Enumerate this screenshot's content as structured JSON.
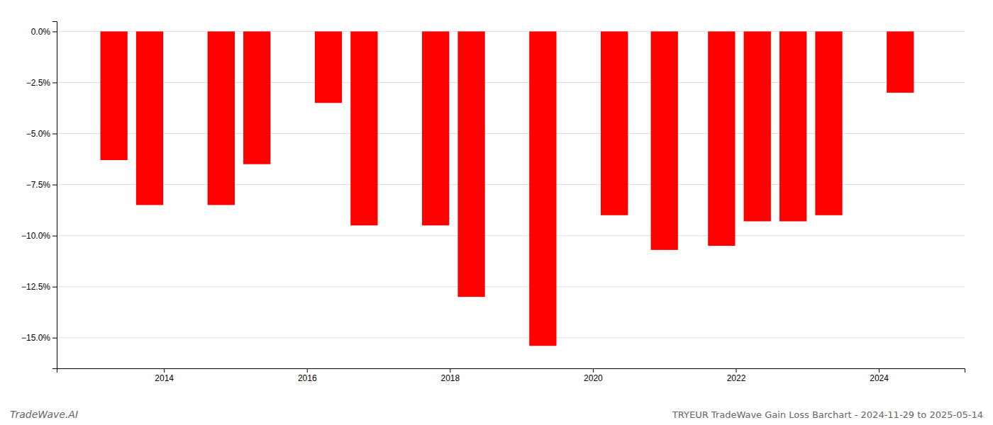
{
  "chart_data": {
    "type": "bar",
    "title": "TRYEUR TradeWave Gain Loss Barchart - 2024-11-29 to 2025-05-14",
    "annotations": [
      {
        "text": "TradeWave.AI"
      }
    ],
    "x": [
      2013.3,
      2013.8,
      2014.8,
      2015.3,
      2016.3,
      2016.8,
      2017.8,
      2018.3,
      2019.3,
      2020.3,
      2021.0,
      2021.8,
      2022.3,
      2022.8,
      2023.3,
      2024.3
    ],
    "values": [
      -6.3,
      -8.5,
      -8.5,
      -6.5,
      -3.5,
      -9.5,
      -9.5,
      -13.0,
      -15.4,
      -9.0,
      -10.7,
      -10.5,
      -9.3,
      -9.3,
      -9.0,
      -3.0
    ],
    "color": "#ff0000",
    "xlim": [
      2012.5,
      2025.2
    ],
    "xticks": [
      2014,
      2016,
      2018,
      2020,
      2022,
      2024
    ],
    "ylim": [
      -16.5,
      0.5
    ],
    "yticks": [
      {
        "value": 0.0,
        "label": "0.0%"
      },
      {
        "value": -2.5,
        "label": "−2.5%"
      },
      {
        "value": -5.0,
        "label": "−5.0%"
      },
      {
        "value": -7.5,
        "label": "−7.5%"
      },
      {
        "value": -10.0,
        "label": "−10.0%"
      },
      {
        "value": -12.5,
        "label": "−12.5%"
      },
      {
        "value": -15.0,
        "label": "−15.0%"
      }
    ],
    "grid": true
  }
}
